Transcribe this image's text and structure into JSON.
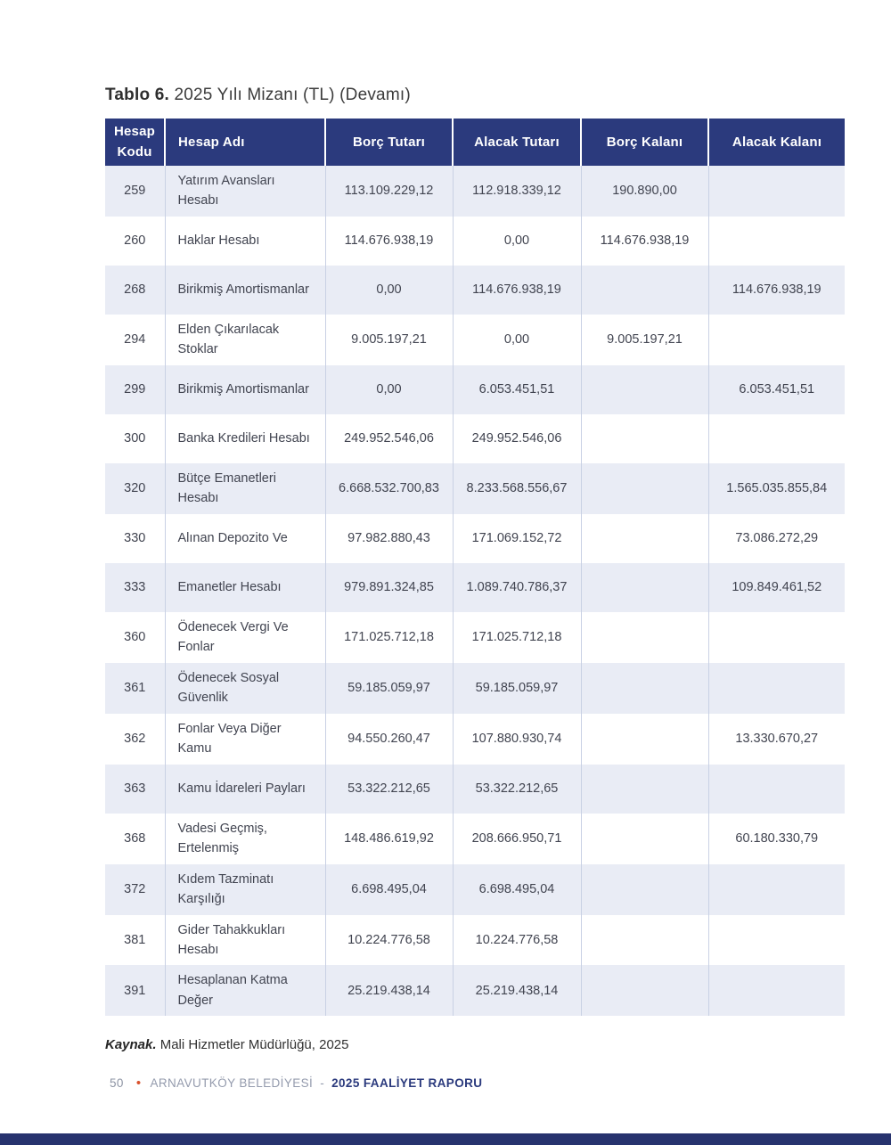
{
  "title": {
    "label_bold": "Tablo 6.",
    "label_rest": " 2025 Yılı Mizanı (TL) (Devamı)"
  },
  "table": {
    "columns": {
      "code": "Hesap Kodu",
      "name": "Hesap Adı",
      "debit_amount": "Borç Tutarı",
      "credit_amount": "Alacak Tutarı",
      "debit_balance": "Borç Kalanı",
      "credit_balance": "Alacak Kalanı"
    },
    "rows": [
      {
        "code": "259",
        "name": "Yatırım Avansları Hesabı",
        "borc_tutari": "113.109.229,12",
        "alacak_tutari": "112.918.339,12",
        "borc_kalani": "190.890,00",
        "alacak_kalani": ""
      },
      {
        "code": "260",
        "name": "Haklar Hesabı",
        "borc_tutari": "114.676.938,19",
        "alacak_tutari": "0,00",
        "borc_kalani": "114.676.938,19",
        "alacak_kalani": ""
      },
      {
        "code": "268",
        "name": "Birikmiş Amortismanlar",
        "borc_tutari": "0,00",
        "alacak_tutari": "114.676.938,19",
        "borc_kalani": "",
        "alacak_kalani": "114.676.938,19"
      },
      {
        "code": "294",
        "name": "Elden Çıkarılacak Stoklar",
        "borc_tutari": "9.005.197,21",
        "alacak_tutari": "0,00",
        "borc_kalani": "9.005.197,21",
        "alacak_kalani": ""
      },
      {
        "code": "299",
        "name": "Birikmiş Amortismanlar",
        "borc_tutari": "0,00",
        "alacak_tutari": "6.053.451,51",
        "borc_kalani": "",
        "alacak_kalani": "6.053.451,51"
      },
      {
        "code": "300",
        "name": "Banka Kredileri Hesabı",
        "borc_tutari": "249.952.546,06",
        "alacak_tutari": "249.952.546,06",
        "borc_kalani": "",
        "alacak_kalani": ""
      },
      {
        "code": "320",
        "name": "Bütçe Emanetleri Hesabı",
        "borc_tutari": "6.668.532.700,83",
        "alacak_tutari": "8.233.568.556,67",
        "borc_kalani": "",
        "alacak_kalani": "1.565.035.855,84"
      },
      {
        "code": "330",
        "name": "Alınan Depozito Ve",
        "borc_tutari": "97.982.880,43",
        "alacak_tutari": "171.069.152,72",
        "borc_kalani": "",
        "alacak_kalani": "73.086.272,29"
      },
      {
        "code": "333",
        "name": "Emanetler Hesabı",
        "borc_tutari": "979.891.324,85",
        "alacak_tutari": "1.089.740.786,37",
        "borc_kalani": "",
        "alacak_kalani": "109.849.461,52"
      },
      {
        "code": "360",
        "name": "Ödenecek Vergi Ve Fonlar",
        "borc_tutari": "171.025.712,18",
        "alacak_tutari": "171.025.712,18",
        "borc_kalani": "",
        "alacak_kalani": ""
      },
      {
        "code": "361",
        "name": "Ödenecek Sosyal Güvenlik",
        "borc_tutari": "59.185.059,97",
        "alacak_tutari": "59.185.059,97",
        "borc_kalani": "",
        "alacak_kalani": ""
      },
      {
        "code": "362",
        "name": "Fonlar Veya Diğer Kamu",
        "borc_tutari": "94.550.260,47",
        "alacak_tutari": "107.880.930,74",
        "borc_kalani": "",
        "alacak_kalani": "13.330.670,27"
      },
      {
        "code": "363",
        "name": "Kamu İdareleri Payları",
        "borc_tutari": "53.322.212,65",
        "alacak_tutari": "53.322.212,65",
        "borc_kalani": "",
        "alacak_kalani": ""
      },
      {
        "code": "368",
        "name": "Vadesi Geçmiş, Ertelenmiş",
        "borc_tutari": "148.486.619,92",
        "alacak_tutari": "208.666.950,71",
        "borc_kalani": "",
        "alacak_kalani": "60.180.330,79"
      },
      {
        "code": "372",
        "name": "Kıdem Tazminatı Karşılığı",
        "borc_tutari": "6.698.495,04",
        "alacak_tutari": "6.698.495,04",
        "borc_kalani": "",
        "alacak_kalani": ""
      },
      {
        "code": "381",
        "name": "Gider Tahakkukları Hesabı",
        "borc_tutari": "10.224.776,58",
        "alacak_tutari": "10.224.776,58",
        "borc_kalani": "",
        "alacak_kalani": ""
      },
      {
        "code": "391",
        "name": "Hesaplanan Katma Değer",
        "borc_tutari": "25.219.438,14",
        "alacak_tutari": "25.219.438,14",
        "borc_kalani": "",
        "alacak_kalani": ""
      }
    ]
  },
  "source": {
    "label_bold": "Kaynak.",
    "label_rest": " Mali Hizmetler Müdürlüğü, 2025"
  },
  "page_footer": {
    "page_number": "50",
    "bullet": "•",
    "organization": "ARNAVUTKÖY BELEDİYESİ",
    "separator": "-",
    "report_title": "2025 FAALİYET RAPORU"
  },
  "colors": {
    "header_bg": "#2b3a7d",
    "row_alt_bg": "#e9ecf5",
    "accent_orange": "#d9512c",
    "bottom_bar": "#27336e"
  }
}
